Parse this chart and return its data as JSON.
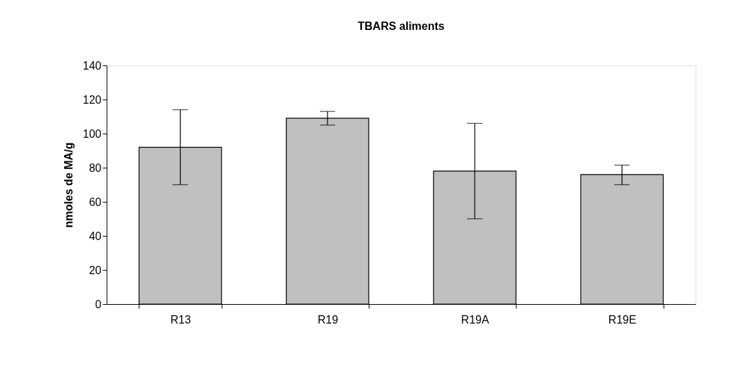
{
  "chart_data": {
    "type": "bar",
    "title": "TBARS aliments",
    "ylabel": "nmoles de MA/g",
    "categories": [
      "R13",
      "R19",
      "R19A",
      "R19E"
    ],
    "values": [
      92,
      109,
      78,
      76
    ],
    "errors": [
      [
        70,
        114
      ],
      [
        105,
        113
      ],
      [
        50,
        106
      ],
      [
        70,
        81.5
      ]
    ],
    "color": "#c0c0c0",
    "ylim": [
      0,
      140
    ],
    "yticks": [
      0,
      20,
      40,
      60,
      80,
      100,
      120,
      140
    ],
    "grid": false
  }
}
